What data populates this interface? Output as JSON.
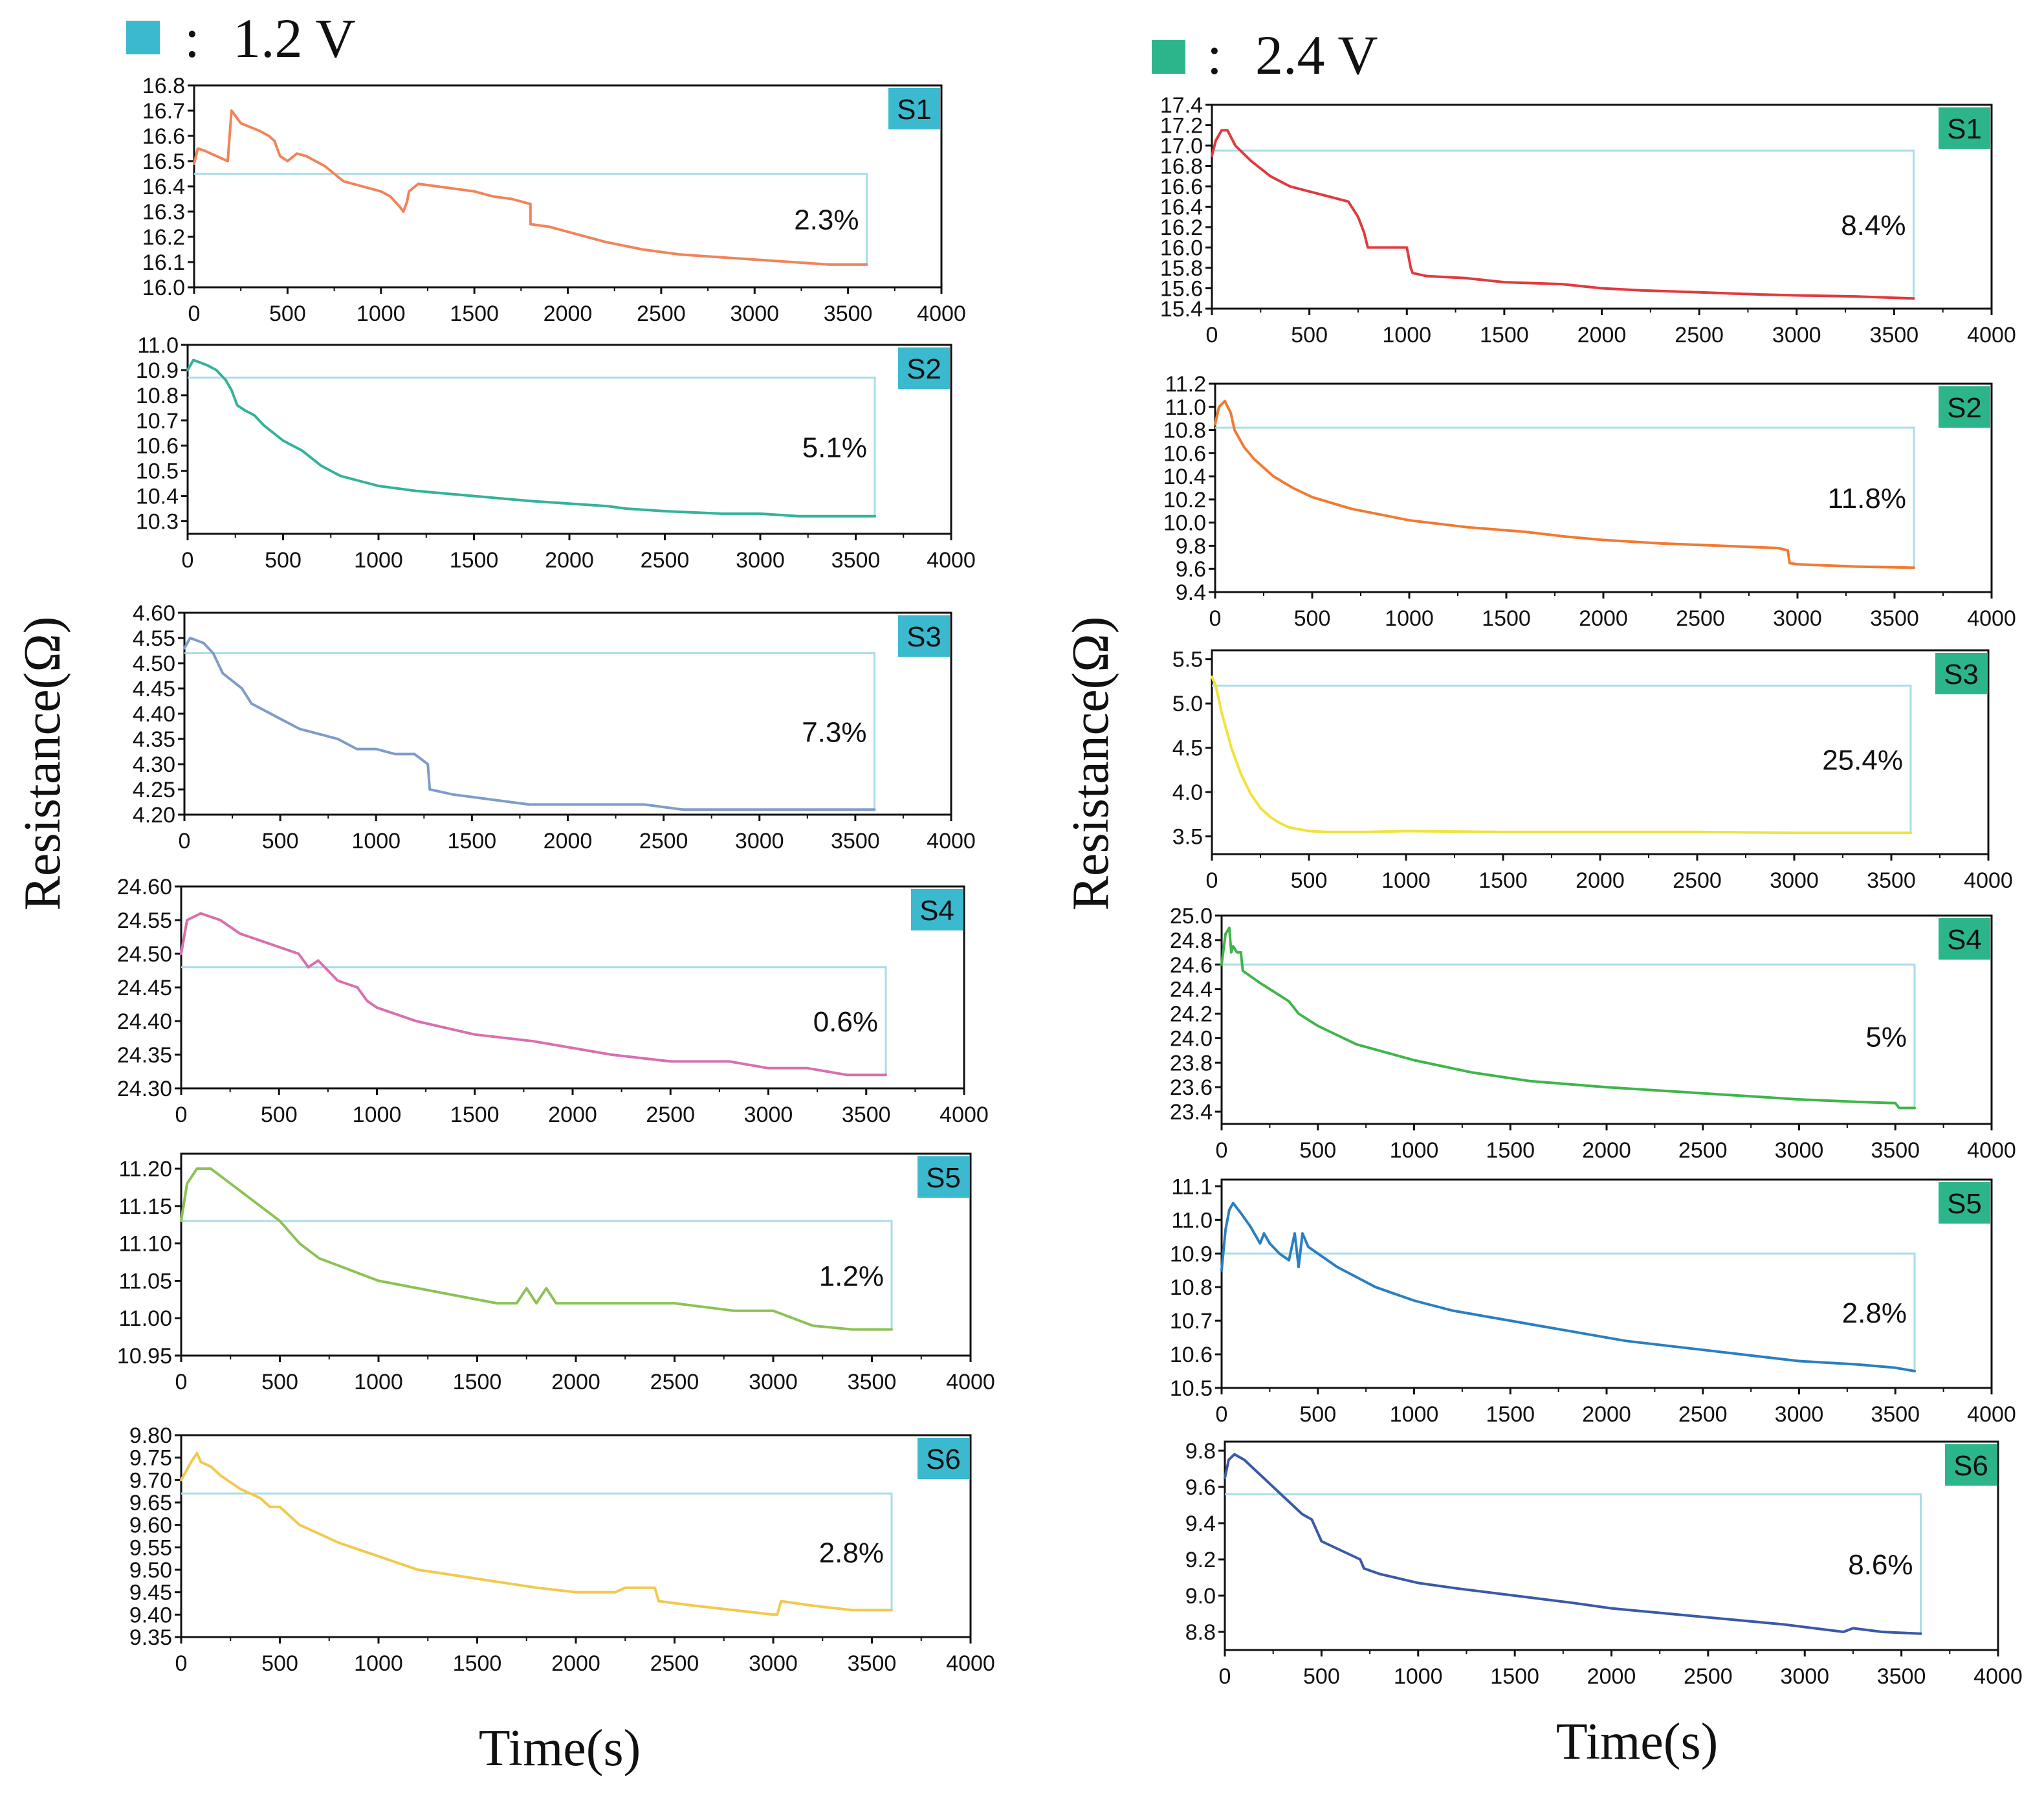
{
  "legend": {
    "left": {
      "separator": ":",
      "label": "1.2 V",
      "color": "#3ab9cf"
    },
    "right": {
      "separator": ":",
      "label": "2.4 V",
      "color": "#2cb58a"
    }
  },
  "axis_titles": {
    "y": "Resistance(Ω)",
    "x": "Time(s)"
  },
  "chart_data": [
    {
      "type": "line",
      "group": "1.2 V",
      "sample": "S1",
      "tag_color": "#3ab9cf",
      "series_color": "#f0845a",
      "annotation": "2.3%",
      "xlim": [
        0,
        4000
      ],
      "xticks": [
        "0",
        "500",
        "1000",
        "1500",
        "2000",
        "2500",
        "3000",
        "3500",
        "4000"
      ],
      "ylim": [
        16.0,
        16.8
      ],
      "yticks": [
        "16.0",
        "16.1",
        "16.2",
        "16.3",
        "16.4",
        "16.5",
        "16.6",
        "16.7",
        "16.8"
      ],
      "ref_y": 16.45,
      "x": [
        0,
        20,
        60,
        120,
        180,
        200,
        250,
        350,
        400,
        430,
        460,
        500,
        550,
        600,
        650,
        700,
        750,
        800,
        900,
        1000,
        1050,
        1100,
        1120,
        1140,
        1150,
        1200,
        1300,
        1400,
        1500,
        1600,
        1700,
        1800,
        1800,
        1900,
        2000,
        2200,
        2400,
        2600,
        2800,
        3000,
        3200,
        3400,
        3600
      ],
      "y": [
        16.49,
        16.55,
        16.54,
        16.52,
        16.5,
        16.7,
        16.65,
        16.62,
        16.6,
        16.58,
        16.52,
        16.5,
        16.53,
        16.52,
        16.5,
        16.48,
        16.45,
        16.42,
        16.4,
        16.38,
        16.36,
        16.32,
        16.3,
        16.34,
        16.38,
        16.41,
        16.4,
        16.39,
        16.38,
        16.36,
        16.35,
        16.33,
        16.25,
        16.24,
        16.22,
        16.18,
        16.15,
        16.13,
        16.12,
        16.11,
        16.1,
        16.09,
        16.09
      ]
    },
    {
      "type": "line",
      "group": "1.2 V",
      "sample": "S2",
      "tag_color": "#3ab9cf",
      "series_color": "#33b39a",
      "annotation": "5.1%",
      "xlim": [
        0,
        4000
      ],
      "xticks": [
        "0",
        "500",
        "1000",
        "1500",
        "2000",
        "2500",
        "3000",
        "3500",
        "4000"
      ],
      "ylim": [
        10.25,
        11.0
      ],
      "yticks": [
        "10.3",
        "10.4",
        "10.5",
        "10.6",
        "10.7",
        "10.8",
        "10.9",
        "11.0"
      ],
      "ref_y": 10.87,
      "x": [
        0,
        30,
        100,
        150,
        200,
        230,
        260,
        300,
        350,
        400,
        500,
        600,
        650,
        700,
        800,
        1000,
        1200,
        1500,
        1800,
        2000,
        2200,
        2300,
        2500,
        2800,
        3000,
        3200,
        3400,
        3600
      ],
      "y": [
        10.9,
        10.94,
        10.92,
        10.9,
        10.86,
        10.82,
        10.76,
        10.74,
        10.72,
        10.68,
        10.62,
        10.58,
        10.55,
        10.52,
        10.48,
        10.44,
        10.42,
        10.4,
        10.38,
        10.37,
        10.36,
        10.35,
        10.34,
        10.33,
        10.33,
        10.32,
        10.32,
        10.32
      ]
    },
    {
      "type": "line",
      "group": "1.2 V",
      "sample": "S3",
      "tag_color": "#3ab9cf",
      "series_color": "#7f9cc9",
      "annotation": "7.3%",
      "xlim": [
        0,
        4000
      ],
      "xticks": [
        "0",
        "500",
        "1000",
        "1500",
        "2000",
        "2500",
        "3000",
        "3500",
        "4000"
      ],
      "ylim": [
        4.2,
        4.6
      ],
      "yticks": [
        "4.20",
        "4.25",
        "4.30",
        "4.35",
        "4.40",
        "4.45",
        "4.50",
        "4.55",
        "4.60"
      ],
      "ref_y": 4.52,
      "x": [
        0,
        30,
        100,
        150,
        200,
        300,
        350,
        400,
        500,
        600,
        700,
        800,
        900,
        1000,
        1100,
        1200,
        1270,
        1280,
        1400,
        1600,
        1800,
        2000,
        2200,
        2400,
        2600,
        2800,
        3000,
        3200,
        3400,
        3600
      ],
      "y": [
        4.53,
        4.55,
        4.54,
        4.52,
        4.48,
        4.45,
        4.42,
        4.41,
        4.39,
        4.37,
        4.36,
        4.35,
        4.33,
        4.33,
        4.32,
        4.32,
        4.3,
        4.25,
        4.24,
        4.23,
        4.22,
        4.22,
        4.22,
        4.22,
        4.21,
        4.21,
        4.21,
        4.21,
        4.21,
        4.21
      ]
    },
    {
      "type": "line",
      "group": "1.2 V",
      "sample": "S4",
      "tag_color": "#3ab9cf",
      "series_color": "#d86fb0",
      "annotation": "0.6%",
      "xlim": [
        0,
        4000
      ],
      "xticks": [
        "0",
        "500",
        "1000",
        "1500",
        "2000",
        "2500",
        "3000",
        "3500",
        "4000"
      ],
      "ylim": [
        24.3,
        24.6
      ],
      "yticks": [
        "24.30",
        "24.35",
        "24.40",
        "24.45",
        "24.50",
        "24.55",
        "24.60"
      ],
      "ref_y": 24.48,
      "x": [
        0,
        30,
        100,
        200,
        300,
        400,
        500,
        600,
        650,
        700,
        800,
        900,
        950,
        1000,
        1200,
        1500,
        1800,
        2000,
        2200,
        2500,
        2800,
        3000,
        3200,
        3400,
        3600
      ],
      "y": [
        24.5,
        24.55,
        24.56,
        24.55,
        24.53,
        24.52,
        24.51,
        24.5,
        24.48,
        24.49,
        24.46,
        24.45,
        24.43,
        24.42,
        24.4,
        24.38,
        24.37,
        24.36,
        24.35,
        24.34,
        24.34,
        24.33,
        24.33,
        24.32,
        24.32
      ]
    },
    {
      "type": "line",
      "group": "1.2 V",
      "sample": "S5",
      "tag_color": "#3ab9cf",
      "series_color": "#8cc255",
      "annotation": "1.2%",
      "xlim": [
        0,
        4000
      ],
      "xticks": [
        "0",
        "500",
        "1000",
        "1500",
        "2000",
        "2500",
        "3000",
        "3500",
        "4000"
      ],
      "ylim": [
        10.95,
        11.22
      ],
      "yticks": [
        "10.95",
        "11.00",
        "11.05",
        "11.10",
        "11.15",
        "11.20"
      ],
      "ref_y": 11.13,
      "x": [
        0,
        30,
        80,
        150,
        250,
        350,
        450,
        500,
        600,
        700,
        800,
        900,
        1000,
        1200,
        1400,
        1600,
        1700,
        1750,
        1800,
        1850,
        1900,
        1950,
        2000,
        2200,
        2500,
        2800,
        3000,
        3100,
        3200,
        3400,
        3600
      ],
      "y": [
        11.13,
        11.18,
        11.2,
        11.2,
        11.18,
        11.16,
        11.14,
        11.13,
        11.1,
        11.08,
        11.07,
        11.06,
        11.05,
        11.04,
        11.03,
        11.02,
        11.02,
        11.04,
        11.02,
        11.04,
        11.02,
        11.02,
        11.02,
        11.02,
        11.02,
        11.01,
        11.01,
        11.0,
        10.99,
        10.985,
        10.985
      ]
    },
    {
      "type": "line",
      "group": "1.2 V",
      "sample": "S6",
      "tag_color": "#3ab9cf",
      "series_color": "#f2c94c",
      "annotation": "2.8%",
      "xlim": [
        0,
        4000
      ],
      "xticks": [
        "0",
        "500",
        "1000",
        "1500",
        "2000",
        "2500",
        "3000",
        "3500",
        "4000"
      ],
      "ylim": [
        9.35,
        9.8
      ],
      "yticks": [
        "9.35",
        "9.40",
        "9.45",
        "9.50",
        "9.55",
        "9.60",
        "9.65",
        "9.70",
        "9.75",
        "9.80"
      ],
      "ref_y": 9.67,
      "x": [
        0,
        50,
        80,
        100,
        150,
        200,
        300,
        400,
        450,
        500,
        600,
        800,
        1000,
        1200,
        1500,
        1800,
        2000,
        2200,
        2250,
        2400,
        2420,
        2600,
        2800,
        3000,
        3020,
        3040,
        3200,
        3400,
        3600
      ],
      "y": [
        9.7,
        9.74,
        9.76,
        9.74,
        9.73,
        9.71,
        9.68,
        9.66,
        9.64,
        9.64,
        9.6,
        9.56,
        9.53,
        9.5,
        9.48,
        9.46,
        9.45,
        9.45,
        9.46,
        9.46,
        9.43,
        9.42,
        9.41,
        9.4,
        9.4,
        9.43,
        9.42,
        9.41,
        9.41
      ]
    },
    {
      "type": "line",
      "group": "2.4 V",
      "sample": "S1",
      "tag_color": "#2cb58a",
      "series_color": "#e03a3e",
      "annotation": "8.4%",
      "xlim": [
        0,
        4000
      ],
      "xticks": [
        "0",
        "500",
        "1000",
        "1500",
        "2000",
        "2500",
        "3000",
        "3500",
        "4000"
      ],
      "ylim": [
        15.4,
        17.4
      ],
      "yticks": [
        "15.4",
        "15.6",
        "15.8",
        "16.0",
        "16.2",
        "16.4",
        "16.6",
        "16.8",
        "17.0",
        "17.2",
        "17.4"
      ],
      "ref_y": 16.95,
      "x": [
        0,
        20,
        50,
        80,
        120,
        200,
        300,
        400,
        500,
        600,
        700,
        750,
        780,
        800,
        850,
        1000,
        1020,
        1030,
        1100,
        1300,
        1500,
        1800,
        2000,
        2200,
        2500,
        2800,
        3000,
        3300,
        3600
      ],
      "y": [
        16.9,
        17.05,
        17.15,
        17.15,
        17.0,
        16.85,
        16.7,
        16.6,
        16.55,
        16.5,
        16.45,
        16.3,
        16.15,
        16.0,
        16.0,
        16.0,
        15.8,
        15.75,
        15.72,
        15.7,
        15.66,
        15.64,
        15.6,
        15.58,
        15.56,
        15.54,
        15.53,
        15.52,
        15.5
      ]
    },
    {
      "type": "line",
      "group": "2.4 V",
      "sample": "S2",
      "tag_color": "#2cb58a",
      "series_color": "#f07a32",
      "annotation": "11.8%",
      "xlim": [
        0,
        4000
      ],
      "xticks": [
        "0",
        "500",
        "1000",
        "1500",
        "2000",
        "2500",
        "3000",
        "3500",
        "4000"
      ],
      "ylim": [
        9.4,
        11.2
      ],
      "yticks": [
        "9.4",
        "9.6",
        "9.8",
        "10.0",
        "10.2",
        "10.4",
        "10.6",
        "10.8",
        "11.0",
        "11.2"
      ],
      "ref_y": 10.82,
      "x": [
        0,
        20,
        50,
        80,
        100,
        150,
        200,
        300,
        400,
        500,
        700,
        1000,
        1300,
        1600,
        1800,
        2000,
        2300,
        2600,
        2900,
        2950,
        2960,
        3000,
        3300,
        3600
      ],
      "y": [
        10.85,
        11.0,
        11.05,
        10.95,
        10.8,
        10.65,
        10.55,
        10.4,
        10.3,
        10.22,
        10.12,
        10.02,
        9.96,
        9.92,
        9.88,
        9.85,
        9.82,
        9.8,
        9.78,
        9.76,
        9.65,
        9.64,
        9.62,
        9.61
      ]
    },
    {
      "type": "line",
      "group": "2.4 V",
      "sample": "S3",
      "tag_color": "#2cb58a",
      "series_color": "#f2e23a",
      "annotation": "25.4%",
      "xlim": [
        0,
        4000
      ],
      "xticks": [
        "0",
        "500",
        "1000",
        "1500",
        "2000",
        "2500",
        "3000",
        "3500",
        "4000"
      ],
      "ylim": [
        3.3,
        5.6
      ],
      "yticks": [
        "3.5",
        "4.0",
        "4.5",
        "5.0",
        "5.5"
      ],
      "ref_y": 5.2,
      "x": [
        0,
        20,
        50,
        100,
        150,
        200,
        250,
        300,
        350,
        400,
        500,
        600,
        800,
        1000,
        1500,
        2000,
        2500,
        3000,
        3600
      ],
      "y": [
        5.3,
        5.2,
        4.9,
        4.5,
        4.2,
        3.98,
        3.82,
        3.72,
        3.65,
        3.6,
        3.56,
        3.55,
        3.55,
        3.56,
        3.55,
        3.55,
        3.55,
        3.54,
        3.54
      ]
    },
    {
      "type": "line",
      "group": "2.4 V",
      "sample": "S4",
      "tag_color": "#2cb58a",
      "series_color": "#3fb54a",
      "annotation": "5%",
      "xlim": [
        0,
        4000
      ],
      "xticks": [
        "0",
        "500",
        "1000",
        "1500",
        "2000",
        "2500",
        "3000",
        "3500",
        "4000"
      ],
      "ylim": [
        23.3,
        25.0
      ],
      "yticks": [
        "23.4",
        "23.6",
        "23.8",
        "24.0",
        "24.2",
        "24.4",
        "24.6",
        "24.8",
        "25.0"
      ],
      "ref_y": 24.6,
      "x": [
        0,
        20,
        40,
        50,
        60,
        80,
        100,
        110,
        200,
        300,
        350,
        400,
        500,
        700,
        1000,
        1300,
        1600,
        2000,
        2400,
        2800,
        3000,
        3300,
        3500,
        3520,
        3600
      ],
      "y": [
        24.6,
        24.85,
        24.9,
        24.7,
        24.75,
        24.7,
        24.7,
        24.55,
        24.45,
        24.35,
        24.3,
        24.2,
        24.1,
        23.95,
        23.82,
        23.72,
        23.65,
        23.6,
        23.56,
        23.52,
        23.5,
        23.48,
        23.47,
        23.43,
        23.43
      ]
    },
    {
      "type": "line",
      "group": "2.4 V",
      "sample": "S5",
      "tag_color": "#2cb58a",
      "series_color": "#2b7fc0",
      "annotation": "2.8%",
      "xlim": [
        0,
        4000
      ],
      "xticks": [
        "0",
        "500",
        "1000",
        "1500",
        "2000",
        "2500",
        "3000",
        "3500",
        "4000"
      ],
      "ylim": [
        10.5,
        11.12
      ],
      "yticks": [
        "10.5",
        "10.6",
        "10.7",
        "10.8",
        "10.9",
        "11.0",
        "11.1"
      ],
      "ref_y": 10.9,
      "x": [
        0,
        20,
        40,
        60,
        100,
        150,
        200,
        220,
        250,
        300,
        350,
        380,
        400,
        420,
        450,
        500,
        600,
        700,
        800,
        1000,
        1200,
        1500,
        1800,
        2100,
        2400,
        2700,
        3000,
        3300,
        3500,
        3600
      ],
      "y": [
        10.85,
        10.97,
        11.03,
        11.05,
        11.02,
        10.98,
        10.93,
        10.96,
        10.93,
        10.9,
        10.88,
        10.96,
        10.86,
        10.96,
        10.92,
        10.9,
        10.86,
        10.83,
        10.8,
        10.76,
        10.73,
        10.7,
        10.67,
        10.64,
        10.62,
        10.6,
        10.58,
        10.57,
        10.56,
        10.55
      ]
    },
    {
      "type": "line",
      "group": "2.4 V",
      "sample": "S6",
      "tag_color": "#2cb58a",
      "series_color": "#3a5aa8",
      "annotation": "8.6%",
      "xlim": [
        0,
        4000
      ],
      "xticks": [
        "0",
        "500",
        "1000",
        "1500",
        "2000",
        "2500",
        "3000",
        "3500",
        "4000"
      ],
      "ylim": [
        8.7,
        9.85
      ],
      "yticks": [
        "8.8",
        "9.0",
        "9.2",
        "9.4",
        "9.6",
        "9.8"
      ],
      "ref_y": 9.56,
      "x": [
        0,
        20,
        50,
        100,
        200,
        300,
        400,
        450,
        500,
        600,
        700,
        720,
        800,
        1000,
        1200,
        1500,
        1800,
        2000,
        2300,
        2600,
        2900,
        3200,
        3250,
        3400,
        3600
      ],
      "y": [
        9.65,
        9.75,
        9.78,
        9.75,
        9.65,
        9.55,
        9.45,
        9.42,
        9.3,
        9.25,
        9.2,
        9.15,
        9.12,
        9.07,
        9.04,
        9.0,
        8.96,
        8.93,
        8.9,
        8.87,
        8.84,
        8.8,
        8.82,
        8.8,
        8.79
      ]
    }
  ]
}
